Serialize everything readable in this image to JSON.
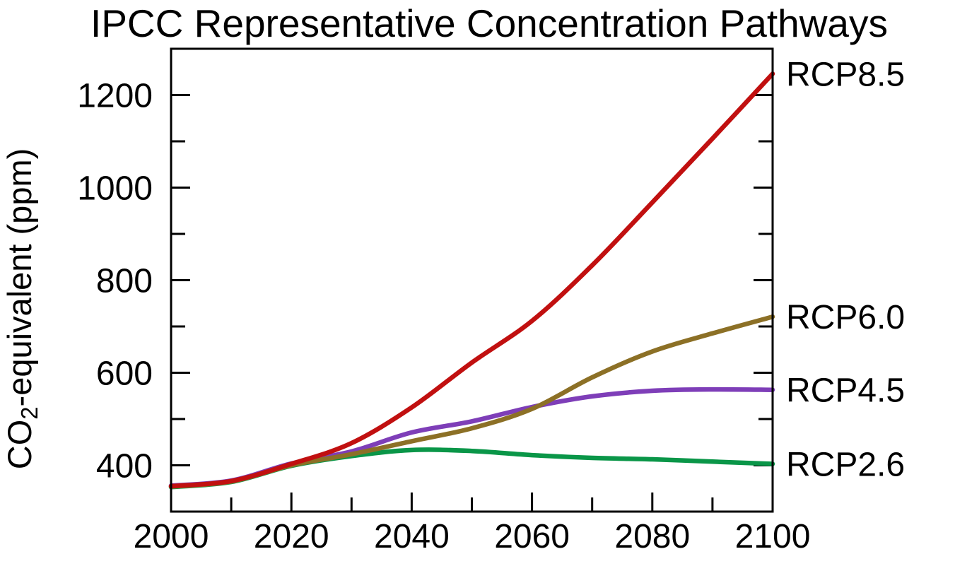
{
  "chart_data": {
    "type": "line",
    "title": "IPCC Representative Concentration Pathways",
    "xlabel": "",
    "ylabel": "CO2-equivalent (ppm)",
    "ylabel_parts": {
      "main": "CO",
      "sub": "2",
      "rest": "-equivalent (ppm)"
    },
    "xlim": [
      2000,
      2100
    ],
    "ylim": [
      300,
      1300
    ],
    "grid": false,
    "legend_position": "outside-right, each label beside line endpoint, colored as its line",
    "x_major_ticks": [
      2000,
      2020,
      2040,
      2060,
      2080,
      2100
    ],
    "x_minor_ticks": [
      2010,
      2030,
      2050,
      2070,
      2090
    ],
    "y_major_ticks": [
      400,
      600,
      800,
      1000,
      1200
    ],
    "y_minor_ticks": [
      500,
      700,
      900,
      1100
    ],
    "x": [
      2000,
      2010,
      2020,
      2030,
      2040,
      2050,
      2060,
      2070,
      2080,
      2090,
      2100
    ],
    "series": [
      {
        "name": "RCP8.5",
        "color": "#C11010",
        "values": [
          355,
          366,
          403,
          448,
          525,
          622,
          712,
          832,
          968,
          1106,
          1246
        ]
      },
      {
        "name": "RCP6.0",
        "color": "#8C7026",
        "values": [
          354,
          365,
          400,
          424,
          452,
          480,
          522,
          590,
          646,
          685,
          721
        ]
      },
      {
        "name": "RCP4.5",
        "color": "#7E3EB8",
        "values": [
          356,
          367,
          404,
          430,
          471,
          495,
          526,
          549,
          561,
          564,
          563
        ]
      },
      {
        "name": "RCP2.6",
        "color": "#0A9648",
        "values": [
          353,
          364,
          399,
          420,
          433,
          431,
          422,
          416,
          413,
          408,
          403
        ]
      }
    ]
  },
  "colors": {
    "axis": "#000000",
    "background": "#FFFFFF"
  }
}
